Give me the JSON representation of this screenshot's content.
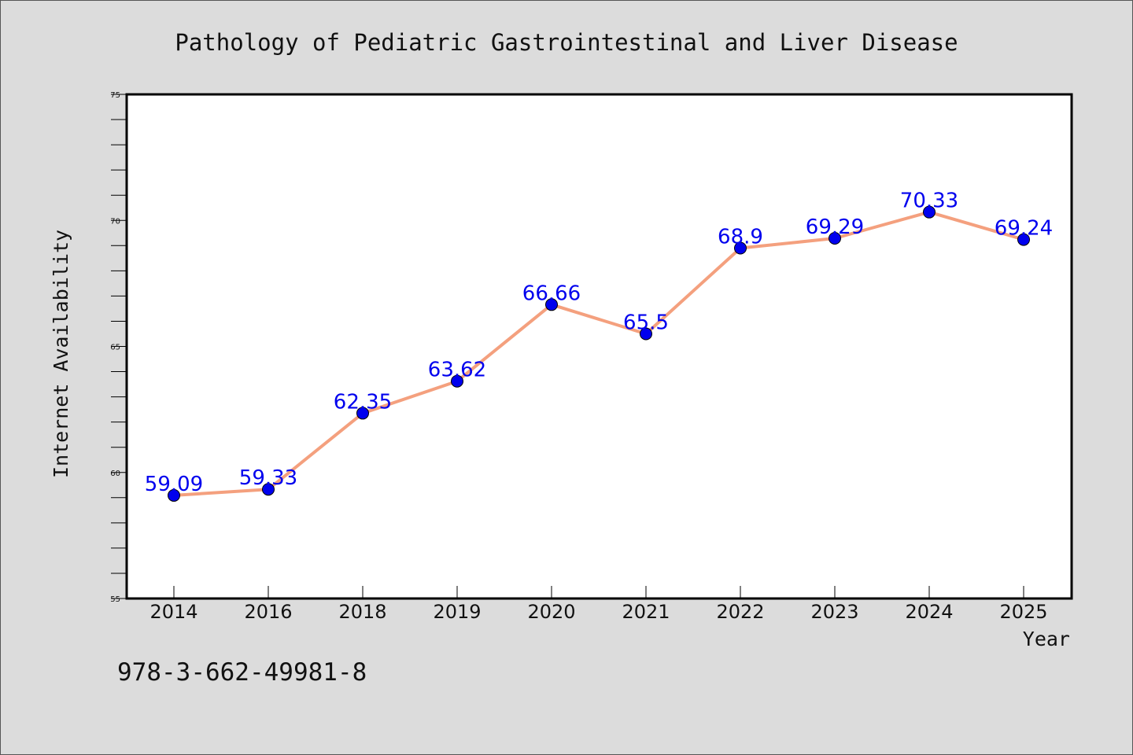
{
  "chart_data": {
    "type": "line",
    "title": "Pathology of Pediatric Gastrointestinal and Liver Disease",
    "xlabel": "Year",
    "ylabel": "Internet Availability",
    "categories": [
      "2014",
      "2016",
      "2018",
      "2019",
      "2020",
      "2021",
      "2022",
      "2023",
      "2024",
      "2025"
    ],
    "series": [
      {
        "values": [
          59.09,
          59.33,
          62.35,
          63.62,
          66.66,
          65.5,
          68.9,
          69.29,
          70.33,
          69.24
        ],
        "data_labels": [
          "59.09",
          "59.33",
          "62.35",
          "63.62",
          "66.66",
          "65.5",
          "68.9",
          "69.29",
          "70.33",
          "69.24"
        ]
      }
    ],
    "ylim": [
      55,
      75
    ],
    "yticks": [
      55,
      60,
      65,
      70,
      75
    ],
    "grid": false,
    "line_color": "#f4a07e",
    "marker_color": "#0000ee",
    "label_color": "#0000ee",
    "plot_background": "#ffffff",
    "figure_background": "#dcdcdc"
  },
  "footer": {
    "isbn": "978-3-662-49981-8"
  }
}
